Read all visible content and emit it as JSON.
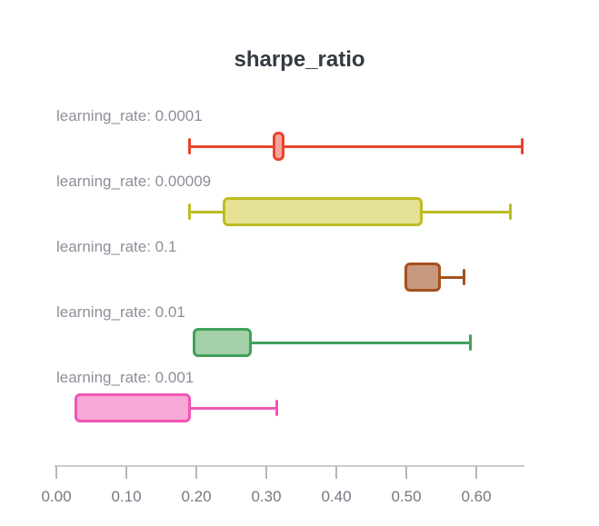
{
  "chart_data": {
    "type": "boxplot",
    "orientation": "horizontal",
    "title": "sharpe_ratio",
    "legend": "none",
    "grid": false,
    "series": [
      {
        "label": "learning_rate: 0.0001",
        "min": 0.19,
        "q1": 0.309,
        "q3": 0.326,
        "max": 0.666,
        "stroke": "#E8432D",
        "fill": "#F5A49A"
      },
      {
        "label": "learning_rate: 0.00009",
        "min": 0.19,
        "q1": 0.238,
        "q3": 0.523,
        "max": 0.649,
        "stroke": "#BCBD22",
        "fill": "#E5E295"
      },
      {
        "label": "learning_rate: 0.1",
        "min": 0.497,
        "q1": 0.497,
        "q3": 0.549,
        "max": 0.582,
        "stroke": "#A4511C",
        "fill": "#C8997F"
      },
      {
        "label": "learning_rate: 0.01",
        "min": 0.195,
        "q1": 0.195,
        "q3": 0.279,
        "max": 0.592,
        "stroke": "#41A15B",
        "fill": "#A4D0A7"
      },
      {
        "label": "learning_rate: 0.001",
        "min": 0.026,
        "q1": 0.026,
        "q3": 0.192,
        "max": 0.315,
        "stroke": "#F056B5",
        "fill": "#F8A9D6"
      }
    ],
    "x_axis": {
      "tick_labels": [
        "0.00",
        "0.10",
        "0.20",
        "0.30",
        "0.40",
        "0.50",
        "0.60"
      ],
      "tick_values": [
        0.0,
        0.1,
        0.2,
        0.3,
        0.4,
        0.5,
        0.6
      ],
      "range": [
        0.0,
        0.67
      ]
    },
    "colors": {
      "background": "#FFFFFF",
      "title_text": "#333A42",
      "series_label_text": "#8B8F99",
      "tick_label_text": "#757982",
      "axis_line": "#C9CBCE",
      "tick_mark": "#B3B6BB"
    }
  }
}
